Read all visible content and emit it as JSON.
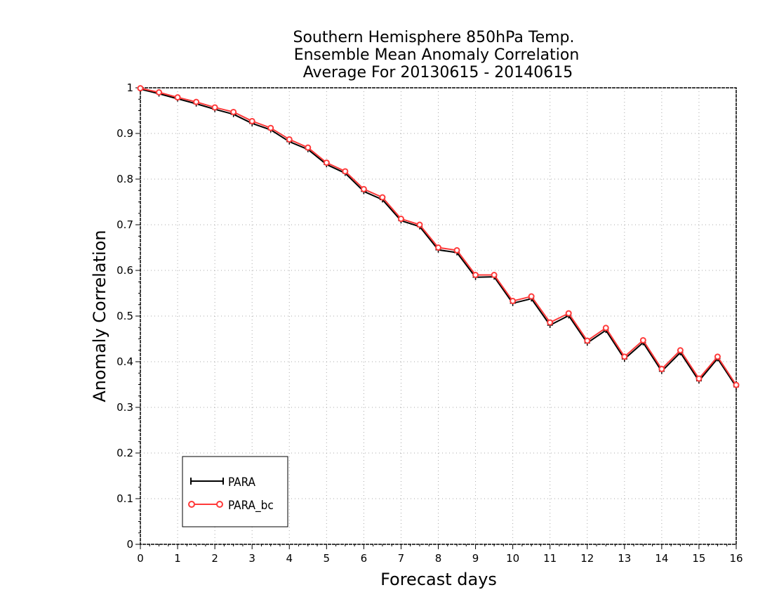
{
  "chart_data": {
    "type": "line",
    "title": [
      "Southern Hemisphere 850hPa Temp.",
      "Ensemble Mean Anomaly Correlation",
      "Average For 20130615 - 20140615"
    ],
    "xlabel": "Forecast days",
    "ylabel": "Anomaly Correlation",
    "xlim": [
      0,
      16
    ],
    "ylim": [
      0,
      1
    ],
    "x_ticks": [
      0,
      1,
      2,
      3,
      4,
      5,
      6,
      7,
      8,
      9,
      10,
      11,
      12,
      13,
      14,
      15,
      16
    ],
    "y_ticks": [
      0,
      0.1,
      0.2,
      0.3,
      0.4,
      0.5,
      0.6,
      0.7,
      0.8,
      0.9,
      1
    ],
    "y_tick_labels": [
      "0",
      "0.1",
      "0.2",
      "0.3",
      "0.4",
      "0.5",
      "0.6",
      "0.7",
      "0.8",
      "0.9",
      "1"
    ],
    "grid": true,
    "legend_position": "bottom-left",
    "x": [
      0,
      0.5,
      1,
      1.5,
      2,
      2.5,
      3,
      3.5,
      4,
      4.5,
      5,
      5.5,
      6,
      6.5,
      7,
      7.5,
      8,
      8.5,
      9,
      9.5,
      10,
      10.5,
      11,
      11.5,
      12,
      12.5,
      13,
      13.5,
      14,
      14.5,
      15,
      15.5,
      16
    ],
    "series": [
      {
        "name": "PARA",
        "color": "#000000",
        "marker": "plus",
        "values": [
          0.997,
          0.987,
          0.976,
          0.965,
          0.953,
          0.942,
          0.922,
          0.908,
          0.882,
          0.865,
          0.832,
          0.813,
          0.773,
          0.755,
          0.709,
          0.696,
          0.645,
          0.639,
          0.585,
          0.586,
          0.528,
          0.538,
          0.48,
          0.501,
          0.441,
          0.469,
          0.406,
          0.442,
          0.379,
          0.42,
          0.358,
          0.407,
          0.345
        ]
      },
      {
        "name": "PARA_bc",
        "color": "#ff3a3a",
        "marker": "circle",
        "values": [
          0.999,
          0.99,
          0.979,
          0.969,
          0.957,
          0.947,
          0.927,
          0.912,
          0.887,
          0.869,
          0.836,
          0.817,
          0.778,
          0.76,
          0.713,
          0.7,
          0.65,
          0.644,
          0.59,
          0.59,
          0.533,
          0.543,
          0.486,
          0.506,
          0.446,
          0.474,
          0.411,
          0.447,
          0.384,
          0.425,
          0.363,
          0.411,
          0.349
        ]
      }
    ]
  }
}
